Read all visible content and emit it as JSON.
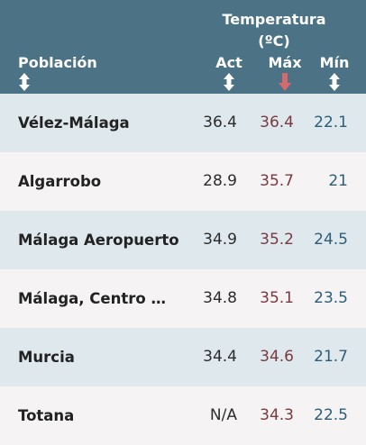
{
  "header": {
    "group_title_line1": "Temperatura",
    "group_title_line2": "(ºC)",
    "col_poblacion": "Población",
    "col_act": "Act",
    "col_max": "Máx",
    "col_min": "Mín"
  },
  "colors": {
    "header_bg": "#4c7385",
    "row_alt_bg": "#dfe9ed",
    "row_plain_bg": "#f5f3f4",
    "max_text": "#7a3a3e",
    "min_text": "#2c5e79",
    "active_sort_arrow": "#d46a6a"
  },
  "sort": {
    "active_column": "Máx",
    "direction": "descending"
  },
  "rows": [
    {
      "name": "Vélez-Málaga",
      "act": "36.4",
      "max": "36.4",
      "min": "22.1"
    },
    {
      "name": "Algarrobo",
      "act": "28.9",
      "max": "35.7",
      "min": "21"
    },
    {
      "name": "Málaga Aeropuerto",
      "act": "34.9",
      "max": "35.2",
      "min": "24.5"
    },
    {
      "name": "Málaga, Centro Met…",
      "act": "34.8",
      "max": "35.1",
      "min": "23.5"
    },
    {
      "name": "Murcia",
      "act": "34.4",
      "max": "34.6",
      "min": "21.7"
    },
    {
      "name": "Totana",
      "act": "N/A",
      "max": "34.3",
      "min": "22.5"
    }
  ]
}
